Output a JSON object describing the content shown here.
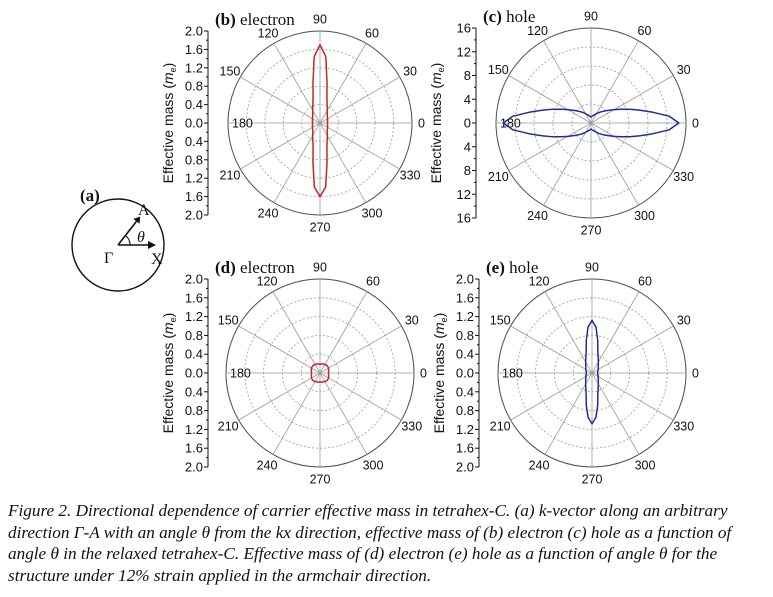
{
  "chart_data": [
    {
      "id": "b",
      "panel_label": "(b)",
      "title": "electron",
      "type": "polar",
      "ylabel": "Effective mass (m_e)",
      "ylabel_main": "Effective mass (",
      "ylabel_unit": "m",
      "ylabel_sub": "e",
      "ylabel_close": ")",
      "r_max": 2.0,
      "radial_ticks_upper": [
        "2.0",
        "1.6",
        "1.2",
        "0.8",
        "0.4",
        "0.0"
      ],
      "radial_ticks_lower": [
        "0.4",
        "0.8",
        "1.2",
        "1.6",
        "2.0"
      ],
      "angle_ticks": [
        "0",
        "30",
        "60",
        "90",
        "120",
        "150",
        "180",
        "210",
        "240",
        "270",
        "300",
        "330"
      ],
      "origin_label": "0.0",
      "series_color": "#c0272d",
      "series": {
        "theta_deg": [
          0,
          15,
          30,
          45,
          60,
          70,
          75,
          80,
          85,
          90,
          95,
          100,
          105,
          110,
          120,
          135,
          150,
          165,
          180,
          195,
          210,
          225,
          240,
          250,
          255,
          260,
          265,
          270,
          275,
          280,
          285,
          290,
          300,
          315,
          330,
          345
        ],
        "r": [
          0.16,
          0.17,
          0.19,
          0.22,
          0.32,
          0.45,
          0.58,
          0.88,
          1.45,
          1.7,
          1.45,
          0.88,
          0.58,
          0.45,
          0.32,
          0.22,
          0.19,
          0.17,
          0.16,
          0.17,
          0.19,
          0.22,
          0.32,
          0.45,
          0.58,
          0.88,
          1.4,
          1.6,
          1.4,
          0.88,
          0.58,
          0.45,
          0.32,
          0.22,
          0.19,
          0.17
        ]
      }
    },
    {
      "id": "c",
      "panel_label": "(c)",
      "title": "hole",
      "type": "polar",
      "ylabel": "Effective mass (m_e)",
      "ylabel_main": "Effective mass (",
      "ylabel_unit": "m",
      "ylabel_sub": "e",
      "ylabel_close": ")",
      "r_max": 16,
      "radial_ticks_upper": [
        "16",
        "12",
        "8",
        "4",
        "0"
      ],
      "radial_ticks_lower": [
        "4",
        "8",
        "12",
        "16"
      ],
      "angle_ticks": [
        "0",
        "30",
        "60",
        "90",
        "120",
        "150",
        "180",
        "210",
        "240",
        "270",
        "300",
        "330"
      ],
      "origin_label": "0",
      "series_color": "#1f2f95",
      "series": {
        "theta_deg": [
          0,
          5,
          10,
          15,
          20,
          25,
          30,
          40,
          50,
          60,
          75,
          90,
          105,
          120,
          130,
          140,
          150,
          155,
          160,
          165,
          170,
          175,
          180,
          185,
          190,
          195,
          200,
          205,
          210,
          220,
          230,
          240,
          255,
          270,
          285,
          300,
          310,
          320,
          330,
          335,
          340,
          345,
          350,
          355
        ],
        "r": [
          14.8,
          13.2,
          10.5,
          8.4,
          6.8,
          5.5,
          4.5,
          3.2,
          2.4,
          1.8,
          1.3,
          1.0,
          1.3,
          1.8,
          2.4,
          3.2,
          4.5,
          5.5,
          6.8,
          8.4,
          10.5,
          13.2,
          14.8,
          13.2,
          10.5,
          8.4,
          6.8,
          5.5,
          4.5,
          3.2,
          2.4,
          1.8,
          1.3,
          1.0,
          1.3,
          1.8,
          2.4,
          3.2,
          4.5,
          5.5,
          6.8,
          8.4,
          10.5,
          13.2
        ]
      }
    },
    {
      "id": "d",
      "panel_label": "(d)",
      "title": "electron",
      "type": "polar",
      "ylabel": "Effective mass (m_e)",
      "ylabel_main": "Effective mass (",
      "ylabel_unit": "m",
      "ylabel_sub": "e",
      "ylabel_close": ")",
      "r_max": 2.0,
      "radial_ticks_upper": [
        "2.0",
        "1.6",
        "1.2",
        "0.8",
        "0.4",
        "0.0"
      ],
      "radial_ticks_lower": [
        "0.4",
        "0.8",
        "1.2",
        "1.6",
        "2.0"
      ],
      "angle_ticks": [
        "0",
        "30",
        "60",
        "90",
        "120",
        "150",
        "180",
        "210",
        "240",
        "270",
        "300",
        "330"
      ],
      "origin_label": "0.0",
      "series_color": "#c0272d",
      "series": {
        "theta_deg": [
          0,
          15,
          30,
          45,
          60,
          75,
          90,
          105,
          120,
          135,
          150,
          165,
          180,
          195,
          210,
          225,
          240,
          255,
          270,
          285,
          300,
          315,
          330,
          345
        ],
        "r": [
          0.18,
          0.19,
          0.21,
          0.22,
          0.21,
          0.2,
          0.19,
          0.2,
          0.21,
          0.22,
          0.21,
          0.19,
          0.18,
          0.19,
          0.21,
          0.22,
          0.21,
          0.2,
          0.19,
          0.2,
          0.21,
          0.22,
          0.21,
          0.19
        ]
      }
    },
    {
      "id": "e",
      "panel_label": "(e)",
      "title": "hole",
      "type": "polar",
      "ylabel": "Effective mass (m_e)",
      "ylabel_main": "Effective mass (",
      "ylabel_unit": "m",
      "ylabel_sub": "e",
      "ylabel_close": ")",
      "r_max": 2.0,
      "radial_ticks_upper": [
        "2.0",
        "1.6",
        "1.2",
        "0.8",
        "0.4",
        "0.0"
      ],
      "radial_ticks_lower": [
        "0.4",
        "0.8",
        "1.2",
        "1.6",
        "2.0"
      ],
      "angle_ticks": [
        "0",
        "30",
        "60",
        "90",
        "120",
        "150",
        "180",
        "210",
        "240",
        "270",
        "300",
        "330"
      ],
      "origin_label": "0.0",
      "series_color": "#1f2f95",
      "series": {
        "theta_deg": [
          0,
          15,
          30,
          45,
          60,
          70,
          75,
          80,
          85,
          90,
          95,
          100,
          105,
          110,
          120,
          135,
          150,
          165,
          180,
          195,
          210,
          225,
          240,
          250,
          255,
          260,
          265,
          270,
          275,
          280,
          285,
          290,
          300,
          315,
          330,
          345
        ],
        "r": [
          0.12,
          0.13,
          0.15,
          0.19,
          0.27,
          0.38,
          0.48,
          0.7,
          0.98,
          1.12,
          0.98,
          0.7,
          0.48,
          0.38,
          0.27,
          0.19,
          0.15,
          0.13,
          0.12,
          0.13,
          0.15,
          0.19,
          0.27,
          0.38,
          0.48,
          0.7,
          0.95,
          1.08,
          0.95,
          0.7,
          0.48,
          0.38,
          0.27,
          0.19,
          0.15,
          0.13
        ]
      }
    }
  ],
  "schematic": {
    "label": "(a)",
    "point_A": "A",
    "point_gamma": "Γ",
    "point_X": "X",
    "angle_symbol": "θ"
  },
  "caption": "Figure 2.  Directional dependence of carrier effective mass in tetrahex-C. (a) k-vector along an arbitrary direction Γ-A with an angle θ from the kx direction, effective mass of (b) electron (c) hole as a function of angle θ in the relaxed tetrahex-C. Effective mass of (d) electron (e) hole as a function of angle θ for the structure under 12% strain applied in the armchair direction."
}
